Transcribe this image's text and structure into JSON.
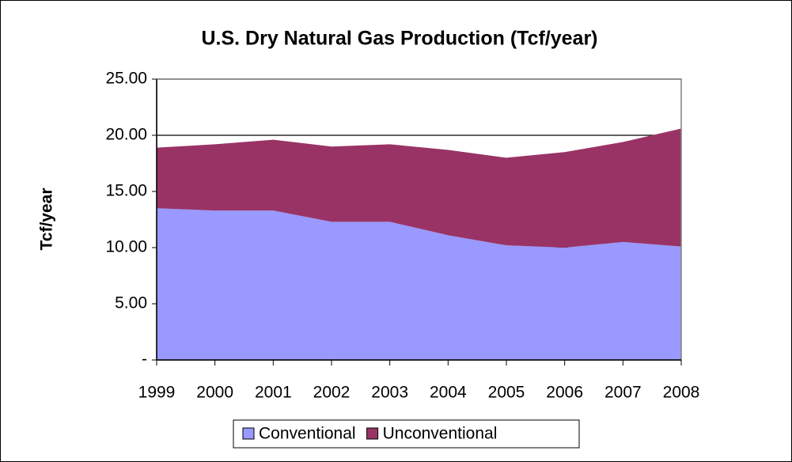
{
  "chart_data": {
    "type": "stacked_area",
    "title": "U.S. Dry Natural Gas Production (Tcf/year)",
    "y_label": "Tcf/year",
    "categories": [
      "1999",
      "2000",
      "2001",
      "2002",
      "2003",
      "2004",
      "2005",
      "2006",
      "2007",
      "2008"
    ],
    "series": [
      {
        "name": "Conventional",
        "color": "#9999ff",
        "values": [
          13.5,
          13.3,
          13.3,
          12.3,
          12.3,
          11.1,
          10.2,
          10.0,
          10.5,
          10.1
        ]
      },
      {
        "name": "Unconventional",
        "color": "#993366",
        "values": [
          5.4,
          5.9,
          6.3,
          6.7,
          6.9,
          7.6,
          7.8,
          8.5,
          8.9,
          10.5
        ]
      }
    ],
    "ylim": [
      0,
      25
    ],
    "yticks": [
      {
        "value": 0,
        "label": "-"
      },
      {
        "value": 5,
        "label": "5.00"
      },
      {
        "value": 10,
        "label": "10.00"
      },
      {
        "value": 15,
        "label": "15.00"
      },
      {
        "value": 20,
        "label": "20.00"
      },
      {
        "value": 25,
        "label": "25.00"
      }
    ],
    "grid": true,
    "legend": "bottom"
  }
}
